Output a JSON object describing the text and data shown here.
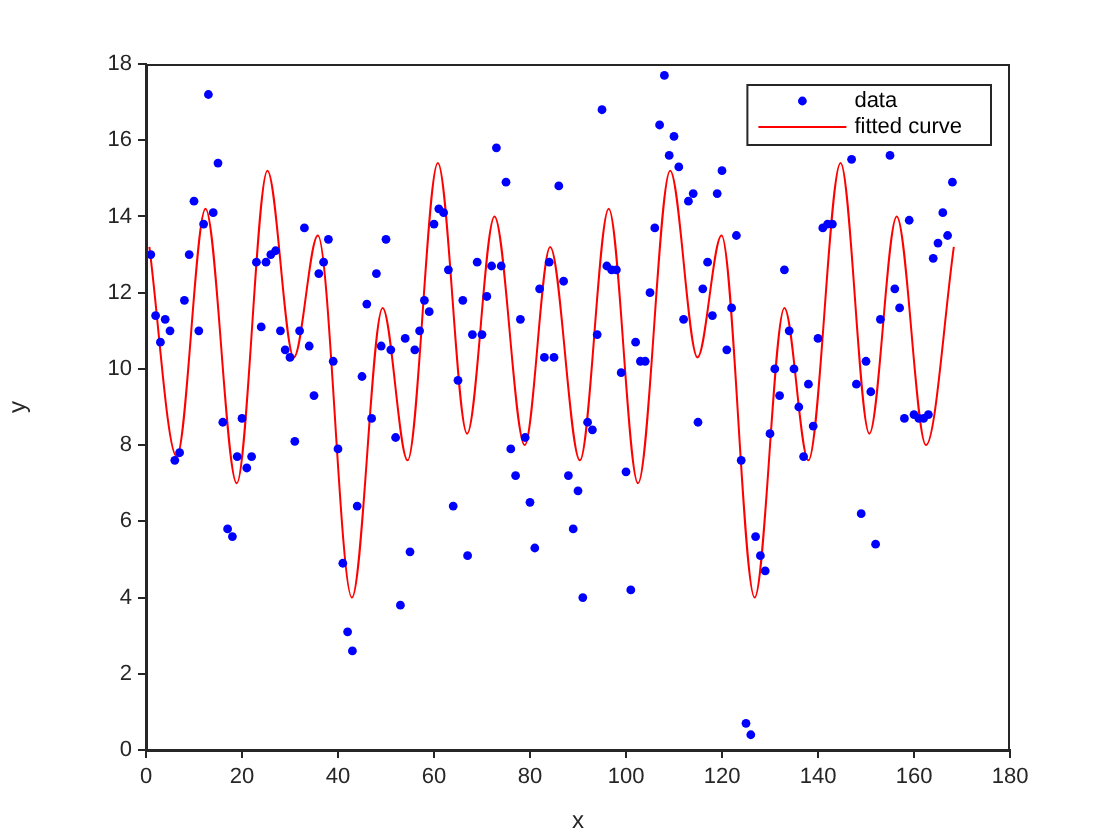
{
  "chart_data": {
    "type": "scatter",
    "xlabel": "x",
    "ylabel": "y",
    "xlim": [
      0,
      180
    ],
    "xticks": [
      0,
      20,
      40,
      60,
      80,
      100,
      120,
      140,
      160,
      180
    ],
    "ylim": [
      0,
      18
    ],
    "yticks": [
      0,
      2,
      4,
      6,
      8,
      10,
      12,
      14,
      16,
      18
    ],
    "grid": false,
    "legend": "top right",
    "series": [
      {
        "name": "data",
        "type": "scatter",
        "color": "#0000ff",
        "marker": "circle",
        "x": [
          1,
          2,
          3,
          4,
          5,
          6,
          7,
          8,
          9,
          10,
          11,
          12,
          13,
          14,
          15,
          16,
          17,
          18,
          19,
          20,
          21,
          22,
          23,
          24,
          25,
          26,
          27,
          28,
          29,
          30,
          31,
          32,
          33,
          34,
          35,
          36,
          37,
          38,
          39,
          40,
          41,
          42,
          43,
          44,
          45,
          46,
          47,
          48,
          49,
          50,
          51,
          52,
          53,
          54,
          55,
          56,
          57,
          58,
          59,
          60,
          61,
          62,
          63,
          64,
          65,
          66,
          67,
          68,
          69,
          70,
          71,
          72,
          73,
          74,
          75,
          76,
          77,
          78,
          79,
          80,
          81,
          82,
          83,
          84,
          85,
          86,
          87,
          88,
          89,
          90,
          91,
          92,
          93,
          94,
          95,
          96,
          97,
          98,
          99,
          100,
          101,
          102,
          103,
          104,
          105,
          106,
          107,
          108,
          109,
          110,
          111,
          112,
          113,
          114,
          115,
          116,
          117,
          118,
          119,
          120,
          121,
          122,
          123,
          124,
          125,
          126,
          127,
          128,
          129,
          130,
          131,
          132,
          133,
          134,
          135,
          136,
          137,
          138,
          139,
          140,
          141,
          142,
          143,
          147,
          148,
          149,
          150,
          151,
          152,
          153,
          155,
          156,
          157,
          158,
          159,
          160,
          161,
          162,
          163,
          164,
          165,
          166,
          167,
          168
        ],
        "values": [
          13.0,
          11.4,
          10.7,
          11.3,
          11.0,
          7.6,
          7.8,
          11.8,
          13.0,
          14.4,
          11.0,
          13.8,
          17.2,
          14.1,
          15.4,
          8.6,
          5.8,
          5.6,
          7.7,
          8.7,
          7.4,
          7.7,
          12.8,
          11.1,
          12.8,
          13.0,
          13.1,
          11.0,
          10.5,
          10.3,
          8.1,
          11.0,
          13.7,
          10.6,
          9.3,
          12.5,
          12.8,
          13.4,
          10.2,
          7.9,
          4.9,
          3.1,
          2.6,
          6.4,
          9.8,
          11.7,
          8.7,
          12.5,
          10.6,
          13.4,
          10.5,
          8.2,
          3.8,
          10.8,
          5.2,
          10.5,
          11.0,
          11.8,
          11.5,
          13.8,
          14.2,
          14.1,
          12.6,
          6.4,
          9.7,
          11.8,
          5.1,
          10.9,
          12.8,
          10.9,
          11.9,
          12.7,
          15.8,
          12.7,
          14.9,
          7.9,
          7.2,
          11.3,
          8.2,
          6.5,
          5.3,
          12.1,
          10.3,
          12.8,
          10.3,
          14.8,
          12.3,
          7.2,
          5.8,
          6.8,
          4.0,
          8.6,
          8.4,
          10.9,
          16.8,
          12.7,
          12.6,
          12.6,
          9.9,
          7.3,
          4.2,
          10.7,
          10.2,
          10.2,
          12.0,
          13.7,
          16.4,
          17.7,
          15.6,
          16.1,
          15.3,
          11.3,
          14.4,
          14.6,
          8.6,
          12.1,
          12.8,
          11.4,
          14.6,
          15.2,
          10.5,
          11.6,
          13.5,
          7.6,
          0.7,
          0.4,
          5.6,
          5.1,
          4.7,
          8.3,
          10.0,
          9.3,
          12.6,
          11.0,
          10.0,
          9.0,
          7.7,
          9.6,
          8.5,
          10.8,
          13.7,
          13.8,
          13.8,
          15.5,
          9.6,
          6.2,
          10.2,
          9.4,
          5.4,
          11.3,
          15.6,
          12.1,
          11.6,
          8.7,
          13.9,
          8.8,
          8.7,
          8.7,
          8.8,
          12.9,
          13.3,
          14.1,
          13.5,
          14.9
        ]
      },
      {
        "name": "fitted curve",
        "type": "line",
        "color": "#ff0000",
        "marker": "none",
        "line_style": "solid",
        "x": [
          0.7,
          6.4,
          12.4,
          18.9,
          25.3,
          30.8,
          35.8,
          42.9,
          49.3,
          54.5,
          60.8,
          66.9,
          72.6,
          78.9,
          84.2,
          90.4,
          96.4,
          102.5,
          109.2,
          114.9,
          119.9,
          126.8,
          133,
          138,
          144.7,
          150.7,
          156.4,
          162.5,
          168.3
        ],
        "values": [
          13.2,
          7.7,
          14.2,
          7.0,
          15.2,
          10.3,
          13.5,
          4.0,
          11.6,
          7.6,
          15.4,
          8.3,
          14.0,
          8.0,
          13.2,
          7.6,
          14.2,
          7.0,
          15.2,
          10.3,
          13.5,
          4.0,
          11.6,
          7.6,
          15.4,
          8.3,
          14.0,
          8.0,
          13.2
        ]
      }
    ]
  }
}
